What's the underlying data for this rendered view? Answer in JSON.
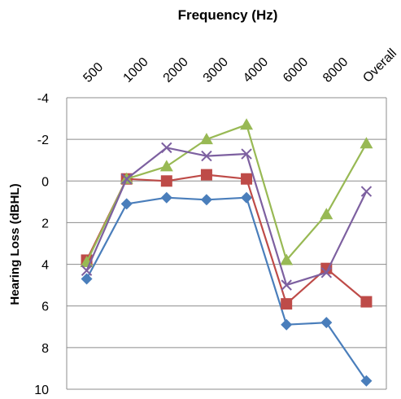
{
  "chart_data": {
    "type": "line",
    "title": "Frequency (Hz)",
    "ylabel": "Hearing Loss (dBHL)",
    "categories": [
      "500",
      "1000",
      "2000",
      "3000",
      "4000",
      "6000",
      "8000",
      "Overall"
    ],
    "y_ticks": [
      "-4",
      "-2",
      "0",
      "2",
      "4",
      "6",
      "8",
      "10"
    ],
    "ylim": [
      -4,
      10
    ],
    "y_inverted": true,
    "grid": true,
    "legend": "none",
    "series": [
      {
        "color": "#4a7ebb",
        "marker": "diamond",
        "values": [
          4.7,
          1.1,
          0.8,
          0.9,
          0.8,
          6.9,
          6.8,
          9.6
        ]
      },
      {
        "color": "#be4b48",
        "marker": "square",
        "values": [
          3.8,
          -0.1,
          0.0,
          -0.3,
          -0.1,
          5.9,
          4.2,
          5.8
        ]
      },
      {
        "color": "#98b954",
        "marker": "triangle",
        "values": [
          3.9,
          -0.1,
          -0.7,
          -2.0,
          -2.7,
          3.8,
          1.6,
          -1.8
        ]
      },
      {
        "color": "#7d60a0",
        "marker": "x",
        "values": [
          4.3,
          -0.1,
          -1.6,
          -1.2,
          -1.3,
          5.0,
          4.4,
          0.5
        ]
      }
    ]
  }
}
